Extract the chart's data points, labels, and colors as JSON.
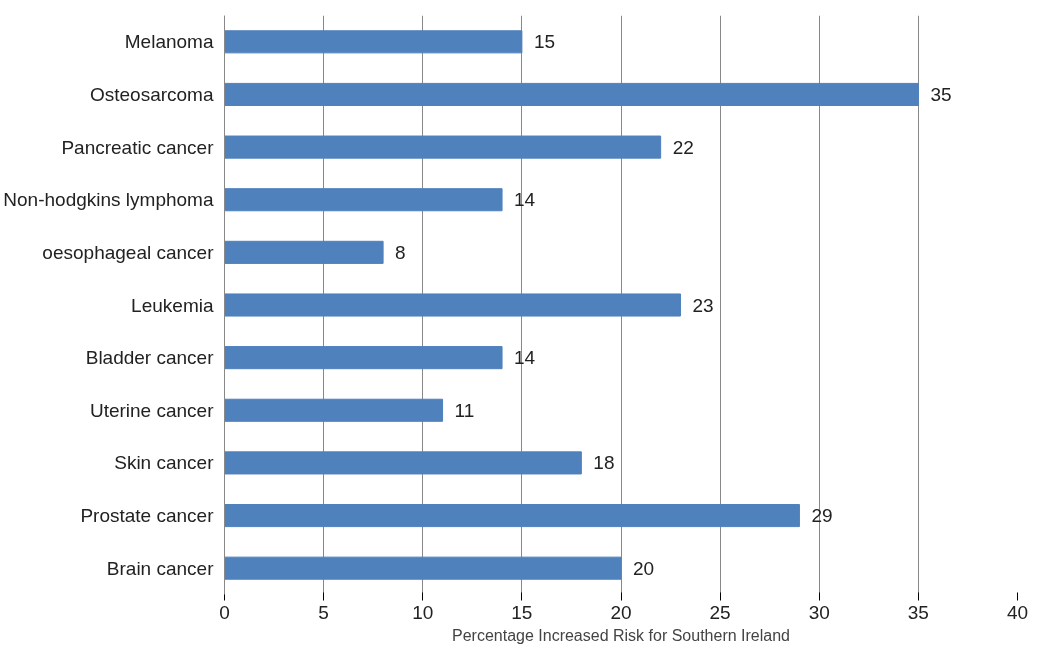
{
  "chart_data": {
    "type": "bar",
    "orientation": "horizontal",
    "categories": [
      "Melanoma",
      "Osteosarcoma",
      "Pancreatic cancer",
      "Non-hodgkins lymphoma",
      "oesophageal cancer",
      "Leukemia",
      "Bladder cancer",
      "Uterine cancer",
      "Skin cancer",
      "Prostate cancer",
      "Brain cancer"
    ],
    "values": [
      15,
      35,
      22,
      14,
      8,
      23,
      14,
      11,
      18,
      29,
      20
    ],
    "color": "#4f81bd",
    "xlabel": "Percentage Increased Risk for Southern Ireland",
    "xlim": [
      0,
      40
    ],
    "xticks": [
      0,
      5,
      10,
      15,
      20,
      25,
      30,
      35,
      40
    ],
    "grid": "x",
    "data_labels": true
  }
}
